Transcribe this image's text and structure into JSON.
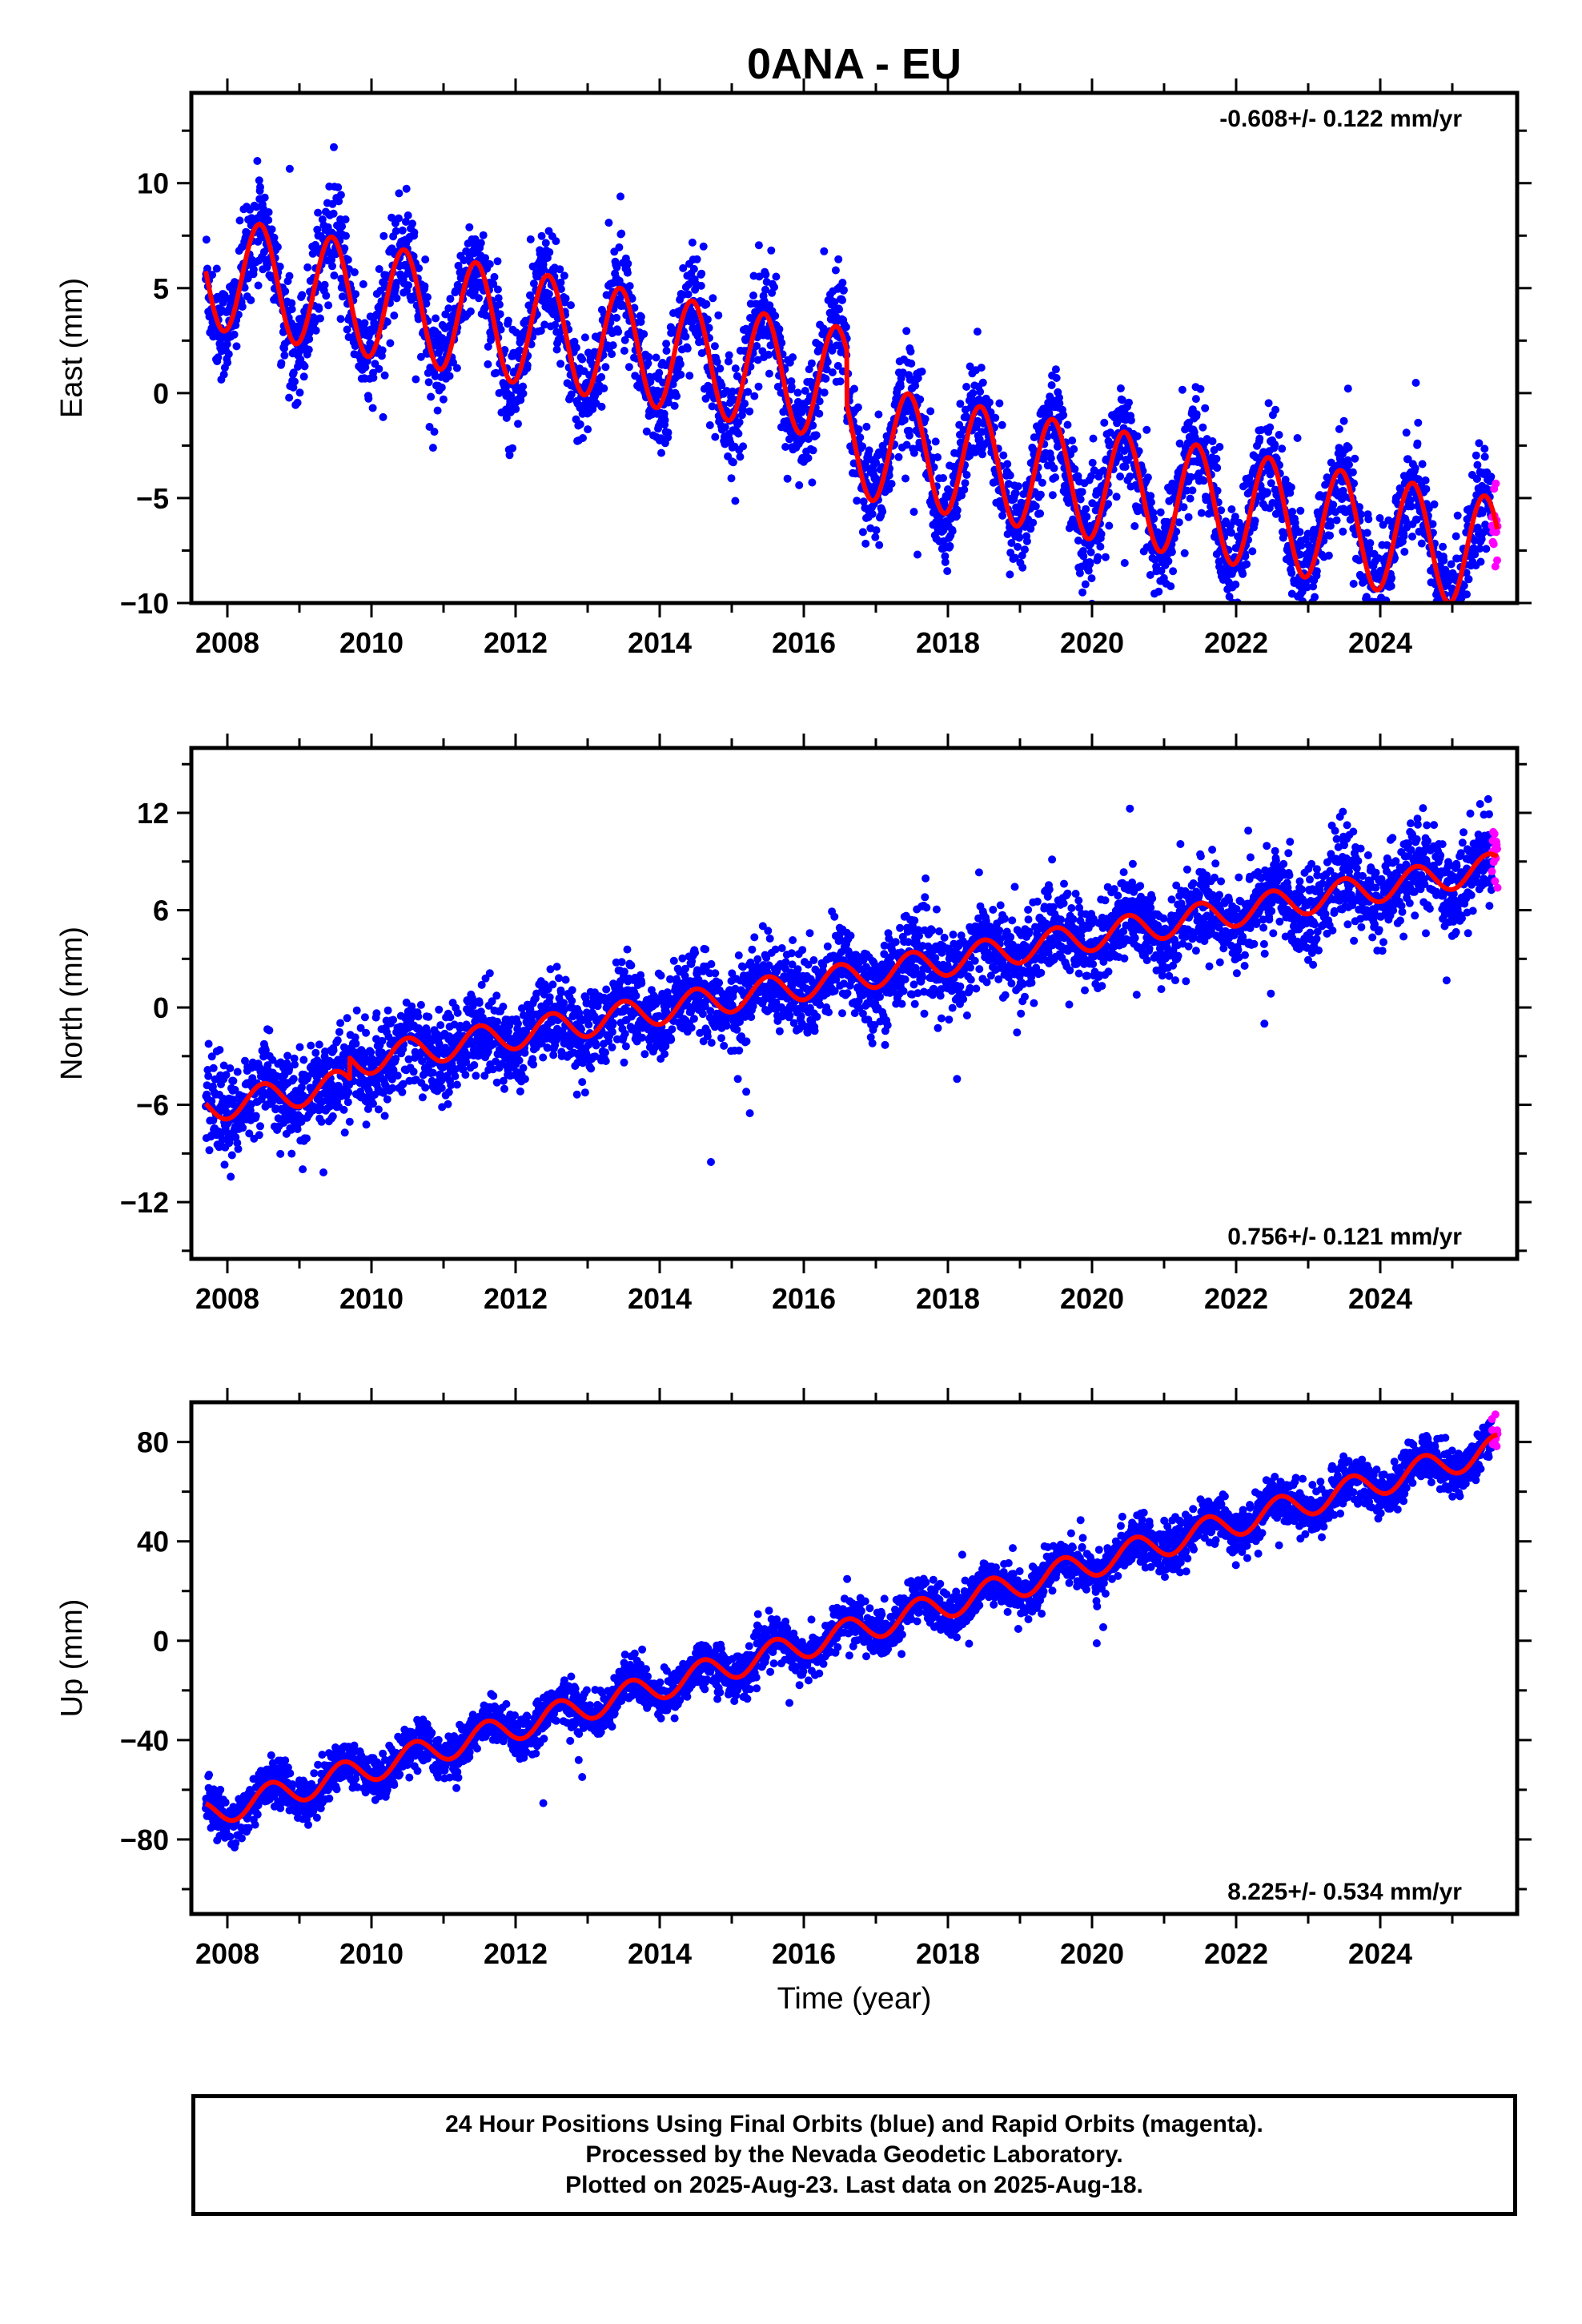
{
  "chart_data": {
    "title": "0ANA - EU",
    "type": "scatter",
    "xlabel": "Time (year)",
    "xlim": [
      2007.5,
      2025.9
    ],
    "x_ticks": [
      2008,
      2010,
      2012,
      2014,
      2016,
      2018,
      2020,
      2022,
      2024
    ],
    "x_tick_labels": [
      "2008",
      "2010",
      "2012",
      "2014",
      "2016",
      "2018",
      "2020",
      "2022",
      "2024"
    ],
    "legend_colors": {
      "final_orbits": "#0000ff",
      "rapid_orbits": "#ff00ff",
      "model_fit": "#ff0000"
    },
    "panels": [
      {
        "ylabel": "East (mm)",
        "ylim": [
          -10,
          14.3
        ],
        "y_ticks": [
          -10,
          -5,
          0,
          5,
          10
        ],
        "y_tick_labels": [
          "−10",
          "−5",
          "0",
          "5",
          "10"
        ],
        "rate_label": "-0.608+/- 0.122 mm/yr",
        "rate_position": "top-right",
        "model": {
          "offset": 5.8,
          "offset_year": 2007.7,
          "slope": -0.608,
          "step": [
            {
              "year": 2016.6,
              "size": -2.6
            }
          ],
          "amplitude": 2.7,
          "peak_phase": 0.45,
          "noise_sd": 1.2
        },
        "series": [
          {
            "name": "Final Orbits",
            "color": "#0000ff",
            "x_range": [
              2007.7,
              2025.55
            ]
          },
          {
            "name": "Rapid Orbits",
            "color": "#ff00ff",
            "x_range": [
              2025.55,
              2025.63
            ]
          }
        ]
      },
      {
        "ylabel": "North (mm)",
        "ylim": [
          -15.5,
          16
        ],
        "y_ticks": [
          -12,
          -6,
          0,
          6,
          12
        ],
        "y_tick_labels": [
          "−12",
          "−6",
          "0",
          "6",
          "12"
        ],
        "rate_label": "0.756+/- 0.121 mm/yr",
        "rate_position": "bottom-right",
        "model": {
          "offset": -6.2,
          "offset_year": 2007.7,
          "slope": 0.756,
          "step": [
            {
              "year": 2009.7,
              "size": 1.3
            }
          ],
          "amplitude": 0.9,
          "peak_phase": 0.5,
          "noise_sd": 1.3
        },
        "series": [
          {
            "name": "Final Orbits",
            "color": "#0000ff",
            "x_range": [
              2007.7,
              2025.55
            ]
          },
          {
            "name": "Rapid Orbits",
            "color": "#ff00ff",
            "x_range": [
              2025.55,
              2025.63
            ]
          }
        ]
      },
      {
        "ylabel": "Up (mm)",
        "ylim": [
          -110,
          96
        ],
        "y_ticks": [
          -80,
          -40,
          0,
          40,
          80
        ],
        "y_tick_labels": [
          "−80",
          "−40",
          "0",
          "40",
          "80"
        ],
        "rate_label": "8.225+/- 0.534 mm/yr",
        "rate_position": "bottom-right",
        "model": {
          "offset": -70,
          "offset_year": 2007.7,
          "slope": 8.225,
          "step": [],
          "amplitude": 5.5,
          "peak_phase": 0.6,
          "noise_sd": 4.5
        },
        "series": [
          {
            "name": "Final Orbits",
            "color": "#0000ff",
            "x_range": [
              2007.7,
              2025.55
            ]
          },
          {
            "name": "Rapid Orbits",
            "color": "#ff00ff",
            "x_range": [
              2025.55,
              2025.63
            ]
          }
        ]
      }
    ]
  },
  "caption": {
    "line1": "24 Hour Positions Using Final Orbits (blue) and Rapid Orbits (magenta).",
    "line2": "Processed by the Nevada Geodetic Laboratory.",
    "line3": "Plotted on 2025-Aug-23. Last data on 2025-Aug-18."
  }
}
